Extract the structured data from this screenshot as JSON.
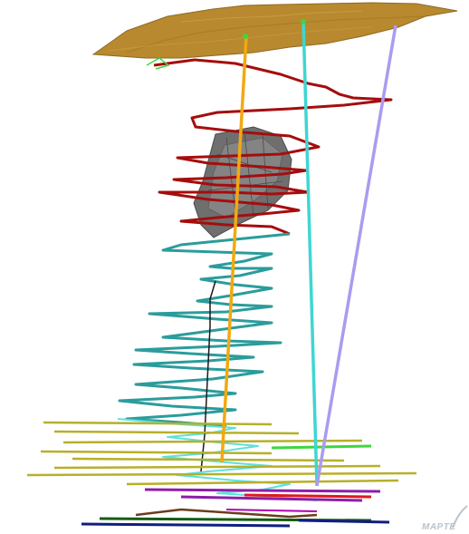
{
  "logo": {
    "text": "MAPTE"
  },
  "colors": {
    "background": "#ffffff",
    "surface": "#b8892e",
    "surface_shadow": "#8f6a22",
    "ramp_upper": "#a50d0d",
    "ramp_middle": "#2b9c9c",
    "ramp_lower_level": "#b6b02a",
    "drillhole_orange": "#f2a90f",
    "drillhole_cyan": "#3fd6d2",
    "drillhole_lavender": "#a99cf0",
    "orebody": "#6f6f6f",
    "shaft_black": "#1a1a1a",
    "level_green": "#3fd63f",
    "level_purple": "#8e1ea8",
    "level_red": "#e0181c",
    "level_navy": "#101e80",
    "level_darkgreen": "#145c14",
    "level_brown": "#6b3d1b"
  },
  "icons": {
    "logo_mark": "mapteck-logo-swoosh"
  }
}
